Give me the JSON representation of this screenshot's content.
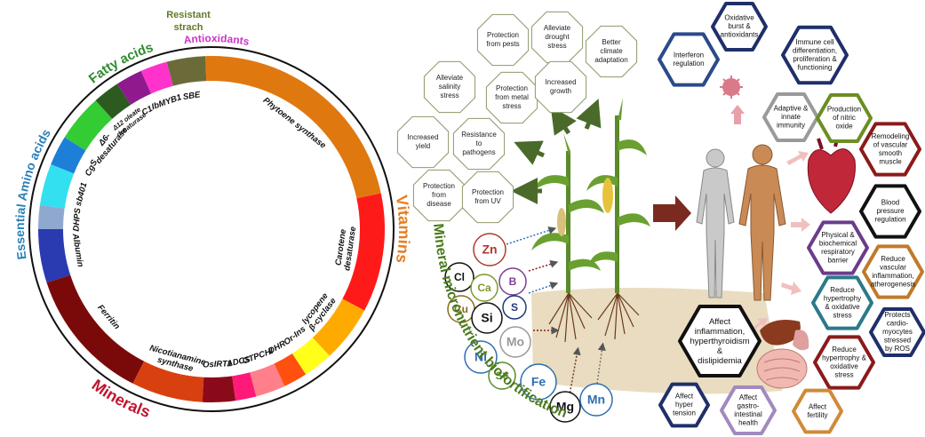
{
  "ring": {
    "segments": [
      {
        "lines": [
          "SBE"
        ],
        "color": "#6b6b3a"
      },
      {
        "lines": [
          "IbMYB1"
        ],
        "color": "#ff33cc"
      },
      {
        "lines": [
          "C1"
        ],
        "color": "#8e1a8e"
      },
      {
        "lines": [
          "Δ12 oleate",
          "desaturase"
        ],
        "color": "#2d5a1e"
      },
      {
        "lines": [
          "Δ6-",
          "desaturase"
        ],
        "color": "#33cc33"
      },
      {
        "lines": [
          "CgS"
        ],
        "color": "#1e7fd8"
      },
      {
        "lines": [
          "sb401"
        ],
        "color": "#33e0f0"
      },
      {
        "lines": [
          "DHPS"
        ],
        "color": "#8fa8d0"
      },
      {
        "lines": [
          "Albumin"
        ],
        "color": "#2a3ab0"
      },
      {
        "lines": [
          "Ferritin"
        ],
        "color": "#7a0a0a"
      },
      {
        "lines": [
          "Nicotianamine",
          "synthase"
        ],
        "color": "#d9400f"
      },
      {
        "lines": [
          "OsIRT1"
        ],
        "color": "#8b0a1a"
      },
      {
        "lines": [
          "ADCS"
        ],
        "color": "#ff1a7a"
      },
      {
        "lines": [
          "GTPCHI"
        ],
        "color": "#ff7f8a"
      },
      {
        "lines": [
          "DHR"
        ],
        "color": "#ff5010"
      },
      {
        "lines": [
          "Or-Ins"
        ],
        "color": "#ffff1a"
      },
      {
        "lines": [
          "lycopene",
          "β-cyclase"
        ],
        "color": "#ffaa00"
      },
      {
        "lines": [
          "Carotene",
          "desaturase"
        ],
        "color": "#ff1a1a"
      },
      {
        "lines": [
          "Phytoene synthase"
        ],
        "color": "#e07810"
      }
    ],
    "groups": [
      {
        "label": "Vitamins",
        "color": "#e67e22"
      },
      {
        "label": "Minerals",
        "color": "#c0152f"
      },
      {
        "label": "Essential Amino acids",
        "color": "#2980b9"
      },
      {
        "label": "Fatty acids",
        "color": "#2e8b2e"
      },
      {
        "label": "Antioxidants",
        "color": "#cc33cc"
      },
      {
        "label": "Resistant strach",
        "lines": [
          "Resistant",
          "strach"
        ],
        "color": "#5f7a2a"
      }
    ]
  },
  "benefits": [
    {
      "lines": [
        "Protection",
        "from pests"
      ]
    },
    {
      "lines": [
        "Alleviate",
        "drought",
        "stress"
      ]
    },
    {
      "lines": [
        "Better",
        "climate",
        "adaptation"
      ]
    },
    {
      "lines": [
        "Alleviate",
        "salinity",
        "stress"
      ]
    },
    {
      "lines": [
        "Protection",
        "from metal",
        "stress"
      ]
    },
    {
      "lines": [
        "Increased",
        "growth"
      ]
    },
    {
      "lines": [
        "Increased",
        "yield"
      ]
    },
    {
      "lines": [
        "Resistance",
        "to",
        "pathogens"
      ]
    },
    {
      "lines": [
        "Protection",
        "from",
        "disease"
      ]
    },
    {
      "lines": [
        "Protection",
        "from UV"
      ]
    }
  ],
  "elements": [
    {
      "symbol": "Zn",
      "color": "#b03a2e"
    },
    {
      "symbol": "Cl",
      "color": "#111111"
    },
    {
      "symbol": "Ca",
      "color": "#7a9a2a"
    },
    {
      "symbol": "B",
      "color": "#7d3c98"
    },
    {
      "symbol": "Cu",
      "color": "#8a6d1a"
    },
    {
      "symbol": "Si",
      "color": "#111111"
    },
    {
      "symbol": "S",
      "color": "#1f3a7a"
    },
    {
      "symbol": "Mo",
      "color": "#999999"
    },
    {
      "symbol": "Ni",
      "color": "#2e6fb0"
    },
    {
      "symbol": "Se",
      "color": "#5a8a2a"
    },
    {
      "symbol": "Fe",
      "color": "#2e6fb0"
    },
    {
      "symbol": "Mg",
      "color": "#111111"
    },
    {
      "symbol": "Mn",
      "color": "#2e6fb0"
    }
  ],
  "effects": [
    {
      "lines": [
        "Interferon",
        "regulation"
      ],
      "color": "#2c4a8a"
    },
    {
      "lines": [
        "Oxidative",
        "burst &",
        "antioxidants"
      ],
      "color": "#1f2f6a"
    },
    {
      "lines": [
        "Immune cell",
        "differentiation,",
        "proliferation &",
        "functioning"
      ],
      "color": "#1f2f6a"
    },
    {
      "lines": [
        "Adaptive &",
        "innate",
        "immunity"
      ],
      "color": "#9a9a9a"
    },
    {
      "lines": [
        "Production",
        "of nitric",
        "oxide"
      ],
      "color": "#6b8e23"
    },
    {
      "lines": [
        "Remodeling",
        "of vascular",
        "smooth",
        "muscle"
      ],
      "color": "#8b1a1a"
    },
    {
      "lines": [
        "Blood",
        "pressure",
        "regulation"
      ],
      "color": "#111111"
    },
    {
      "lines": [
        "Physical &",
        "biochemical",
        "respiratory",
        "barrier"
      ],
      "color": "#6a3d8a"
    },
    {
      "lines": [
        "Reduce",
        "vascular",
        "inflammation,",
        "atherogenesis"
      ],
      "color": "#c07a2a"
    },
    {
      "lines": [
        "Reduce",
        "hypertrophy",
        "& oxidative",
        "stress"
      ],
      "color": "#2a7a8a"
    },
    {
      "lines": [
        "Protects",
        "cardio-",
        "myocytes",
        "stressed",
        "by ROS"
      ],
      "color": "#1f2f6a"
    },
    {
      "lines": [
        "Reduce",
        "hypertrophy &",
        "oxidative",
        "stress"
      ],
      "color": "#8b1a1a"
    },
    {
      "lines": [
        "Affect",
        "inflammation,",
        "hyperthyroidism",
        "&",
        "dislipidemia"
      ],
      "color": "#111111"
    },
    {
      "lines": [
        "Affect",
        "hyper",
        "tension"
      ],
      "color": "#1f2f6a"
    },
    {
      "lines": [
        "Affect",
        "gastro-",
        "intestinal",
        "health"
      ],
      "color": "#a08ac0"
    },
    {
      "lines": [
        "Affect",
        "fertility"
      ],
      "color": "#d08a3a"
    }
  ],
  "title": "Mineral micronutrient biofortification",
  "title_color": "#4a7a1e"
}
